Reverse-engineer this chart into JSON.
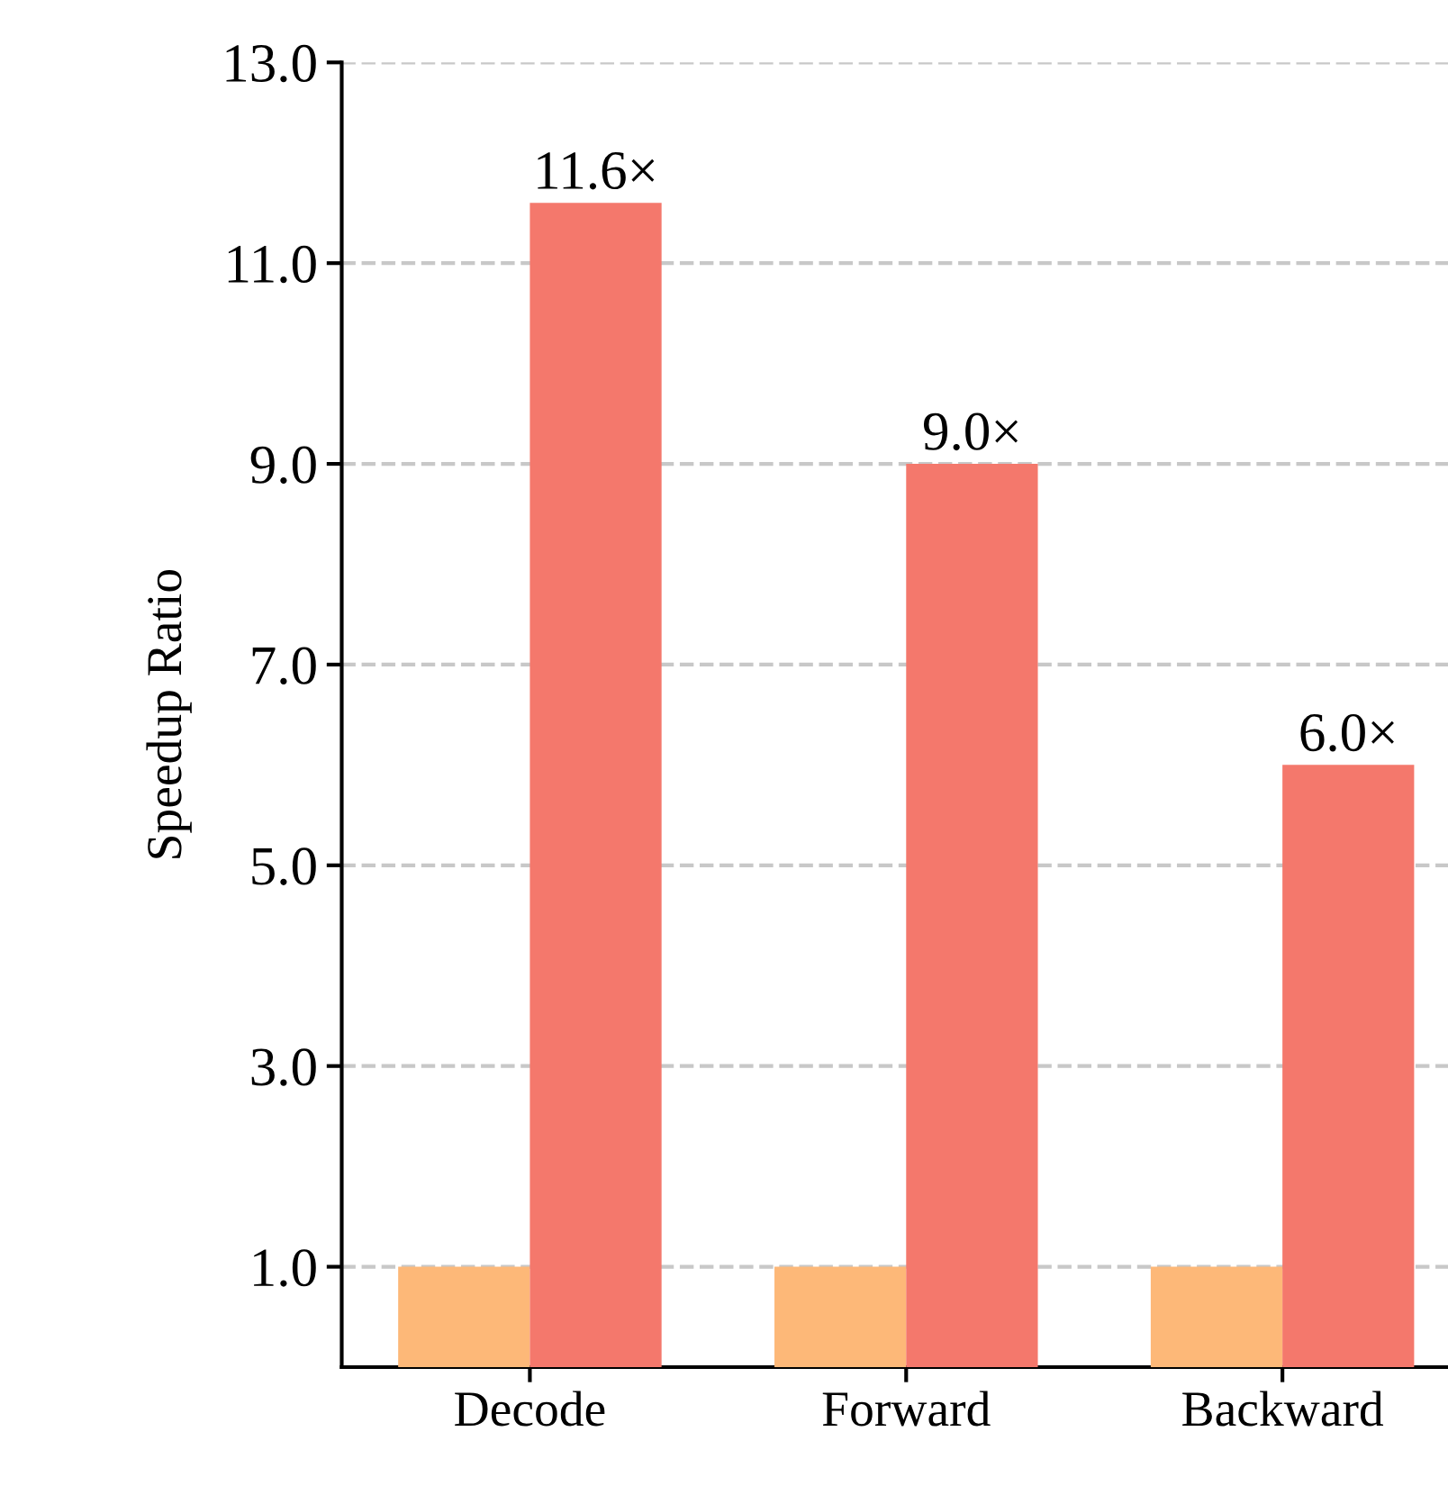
{
  "chart_data": {
    "type": "bar",
    "ylabel": "Speedup Ratio",
    "categories": [
      "Decode",
      "Forward",
      "Backward"
    ],
    "series": [
      {
        "color": "#fdb878",
        "values": [
          1.0,
          1.0,
          1.0
        ]
      },
      {
        "color": "#f4786c",
        "values": [
          11.6,
          9.0,
          6.0
        ],
        "value_labels": [
          "11.6×",
          "9.0×",
          "6.0×"
        ]
      }
    ],
    "ylim": [
      0,
      13
    ],
    "yticks": [
      {
        "value": 1,
        "label": "1.0"
      },
      {
        "value": 3,
        "label": "3.0"
      },
      {
        "value": 5,
        "label": "5.0"
      },
      {
        "value": 7,
        "label": "7.0"
      },
      {
        "value": 9,
        "label": "9.0"
      },
      {
        "value": 11,
        "label": "11.0"
      },
      {
        "value": 13,
        "label": "13.0"
      }
    ],
    "grid": "y"
  }
}
